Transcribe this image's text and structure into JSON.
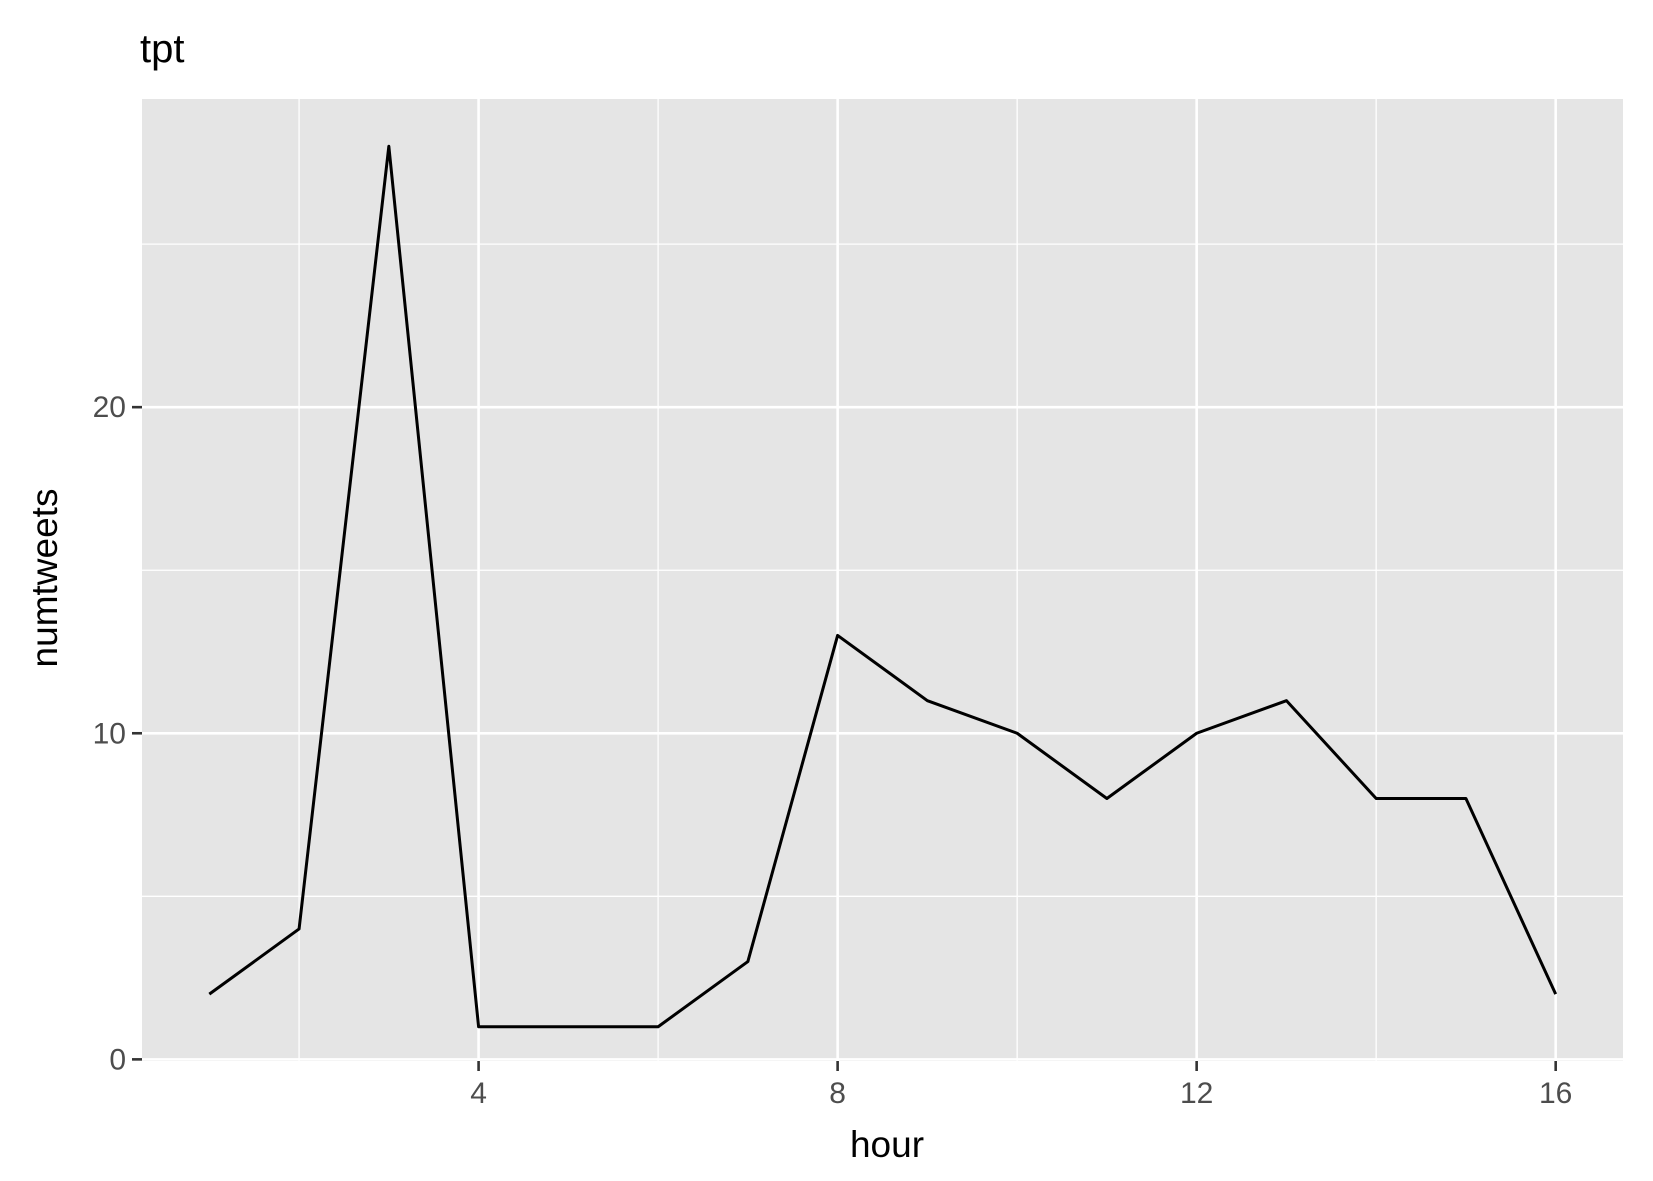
{
  "chart_data": {
    "type": "line",
    "title": "tpt",
    "xlabel": "hour",
    "ylabel": "numtweets",
    "x": [
      1,
      2,
      3,
      4,
      5,
      6,
      7,
      8,
      9,
      10,
      11,
      12,
      13,
      14,
      15,
      16
    ],
    "series": [
      {
        "values": [
          2,
          4,
          28,
          1,
          1,
          1,
          3,
          13,
          11,
          10,
          8,
          10,
          11,
          8,
          8,
          2
        ]
      }
    ],
    "xlim": [
      0.25,
      16.75
    ],
    "ylim": [
      -0.05,
      29.45
    ],
    "x_ticks": [
      4,
      8,
      12,
      16
    ],
    "x_tick_labels": [
      "4",
      "8",
      "12",
      "16"
    ],
    "x_minor_ticks": [
      2,
      6,
      10,
      14
    ],
    "y_ticks": [
      0,
      10,
      20
    ],
    "y_tick_labels": [
      "0",
      "10",
      "20"
    ],
    "y_minor_ticks": [
      5,
      15,
      25
    ],
    "grid": true,
    "legend": "none",
    "colors": {
      "panel_background": "#e5e5e5",
      "grid_line": "#ffffff",
      "series_line": "#000000",
      "tick_mark": "#333333",
      "tick_label": "#4d4d4d"
    }
  }
}
